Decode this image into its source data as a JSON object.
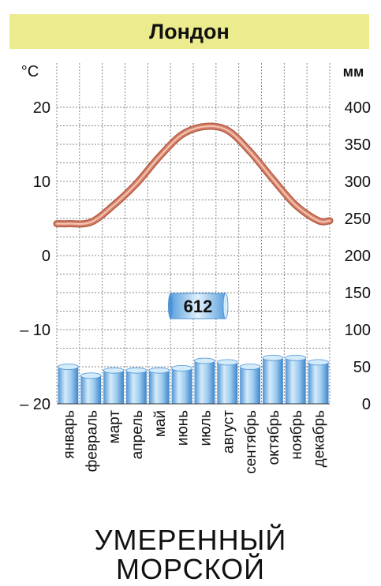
{
  "chart_data": {
    "type": "line",
    "title": "Лондон",
    "subtitle": [
      "УМЕРЕННЫЙ",
      "МОРСКОЙ"
    ],
    "categories": [
      "январь",
      "февраль",
      "март",
      "апрель",
      "май",
      "июнь",
      "июль",
      "август",
      "сентябрь",
      "октябрь",
      "ноябрь",
      "декабрь"
    ],
    "left_axis": {
      "unit": "°C",
      "ylim": [
        -20,
        20
      ],
      "ticks": [
        "20",
        "10",
        "0",
        "– 10",
        "– 20"
      ],
      "tick_values": [
        20,
        10,
        0,
        -10,
        -20
      ]
    },
    "right_axis": {
      "unit": "мм",
      "ylim": [
        0,
        400
      ],
      "ticks": [
        "400",
        "350",
        "300",
        "250",
        "200",
        "150",
        "100",
        "50",
        "0"
      ],
      "tick_values": [
        400,
        350,
        300,
        250,
        200,
        150,
        100,
        50,
        0
      ]
    },
    "series": [
      {
        "type": "line",
        "axis": "left",
        "values": [
          4.3,
          4.5,
          6.8,
          9.7,
          13.3,
          16.3,
          17.4,
          16.9,
          14.0,
          10.3,
          6.8,
          4.7
        ]
      },
      {
        "type": "bar",
        "axis": "right",
        "values": [
          50,
          38,
          45,
          45,
          45,
          48,
          58,
          56,
          50,
          62,
          62,
          56
        ]
      }
    ],
    "annotation": "612",
    "grid": true,
    "colors": {
      "line": "#d8826b",
      "line_dark": "#b25d45",
      "bar": "#7fb7e6",
      "bar_light": "#d4ebfa",
      "grid": "#888888",
      "title_bg": "#eceb8e"
    }
  }
}
